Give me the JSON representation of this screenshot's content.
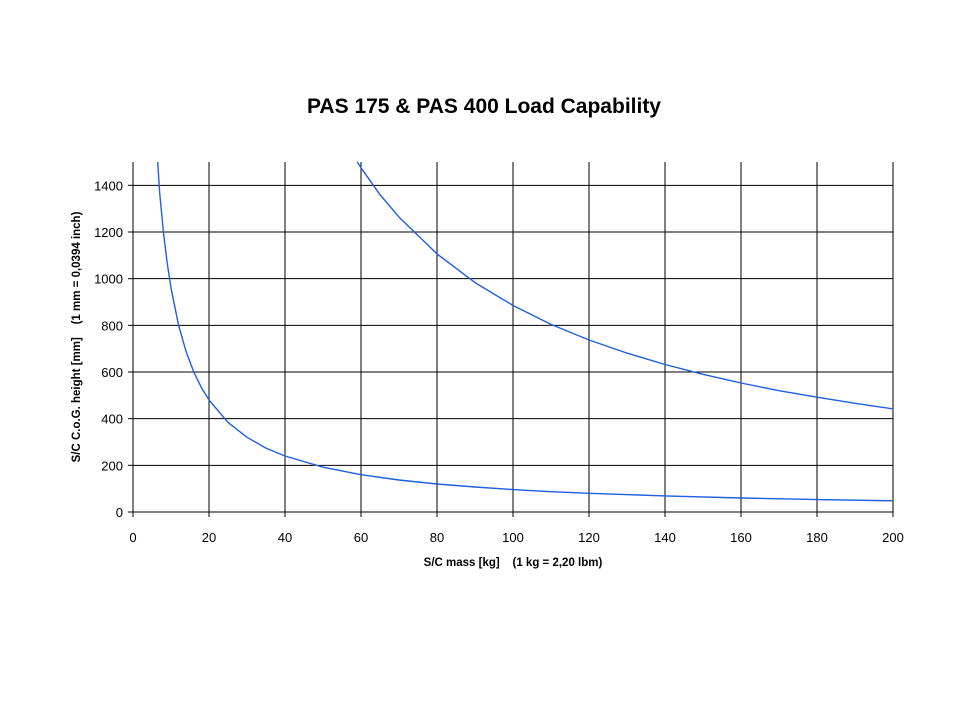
{
  "chart_data": {
    "type": "line",
    "title": "PAS 175 & PAS 400 Load Capability",
    "xlabel": "S/C mass [kg]    (1 kg = 2,20 lbm)",
    "ylabel": "S/C C.o.G. height [mm]    (1 mm = 0,0394 inch)",
    "xlim": [
      0,
      200
    ],
    "ylim": [
      0,
      1500
    ],
    "x_ticks": [
      "0",
      "20",
      "40",
      "60",
      "80",
      "100",
      "120",
      "140",
      "160",
      "180",
      "200"
    ],
    "y_ticks": [
      "0",
      "200",
      "400",
      "600",
      "800",
      "1000",
      "1200",
      "1400"
    ],
    "grid": true,
    "series": [
      {
        "color": "#1f5fe0",
        "x": [
          6.5,
          7,
          8,
          9,
          10,
          12,
          14,
          16,
          18,
          20,
          25,
          30,
          35,
          40,
          50,
          60,
          70,
          80,
          90,
          100,
          110,
          120,
          140,
          160,
          180,
          200
        ],
        "y": [
          1500,
          1371,
          1200,
          1067,
          960,
          800,
          686,
          600,
          533,
          480,
          384,
          320,
          274,
          240,
          192,
          160,
          137,
          120,
          107,
          96,
          87,
          80,
          69,
          60,
          53,
          48
        ]
      },
      {
        "color": "#1f5fe0",
        "x": [
          59,
          60,
          65,
          70,
          80,
          90,
          100,
          110,
          120,
          130,
          140,
          150,
          160,
          170,
          180,
          190,
          200
        ],
        "y": [
          1500,
          1475,
          1360,
          1264,
          1106,
          983,
          885,
          804,
          737,
          681,
          632,
          590,
          553,
          520,
          492,
          466,
          442
        ]
      }
    ]
  }
}
